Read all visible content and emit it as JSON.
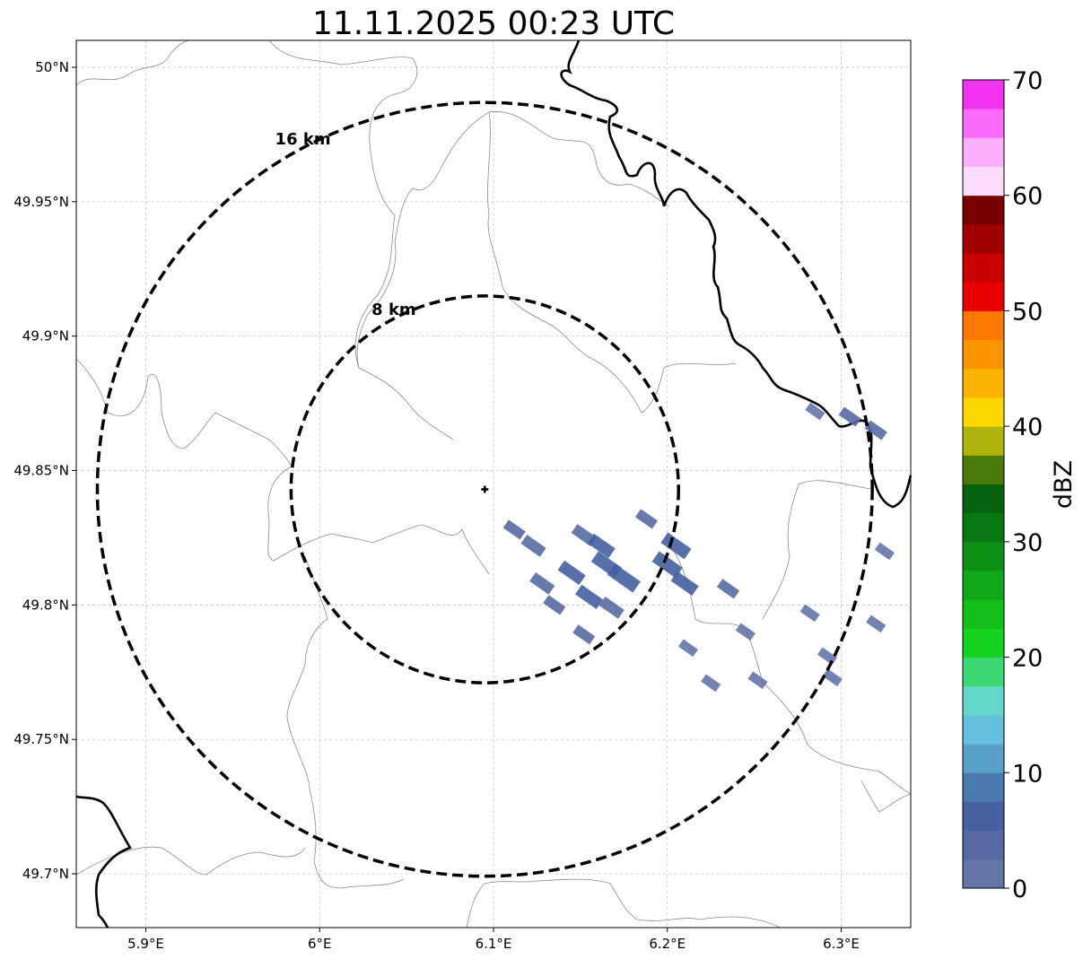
{
  "title": "11.11.2025 00:23 UTC",
  "map": {
    "lon_range": [
      5.86,
      6.34
    ],
    "lat_range": [
      49.68,
      50.01
    ],
    "lon_ticks": [
      {
        "value": 5.9,
        "label": "5.9°E"
      },
      {
        "value": 6.0,
        "label": "6°E"
      },
      {
        "value": 6.1,
        "label": "6.1°E"
      },
      {
        "value": 6.2,
        "label": "6.2°E"
      },
      {
        "value": 6.3,
        "label": "6.3°E"
      }
    ],
    "lat_ticks": [
      {
        "value": 50.0,
        "label": "50°N"
      },
      {
        "value": 49.95,
        "label": "49.95°N"
      },
      {
        "value": 49.9,
        "label": "49.9°N"
      },
      {
        "value": 49.85,
        "label": "49.85°N"
      },
      {
        "value": 49.8,
        "label": "49.8°N"
      },
      {
        "value": 49.75,
        "label": "49.75°N"
      },
      {
        "value": 49.7,
        "label": "49.7°N"
      }
    ],
    "radar_center": {
      "lon": 6.095,
      "lat": 49.843
    },
    "rings": [
      {
        "label": "8 km",
        "radius_km": 8
      },
      {
        "label": "16 km",
        "radius_km": 16
      }
    ],
    "echoes": [
      {
        "lon": 6.152,
        "lat": 49.826,
        "dbz": 4
      },
      {
        "lon": 6.162,
        "lat": 49.822,
        "dbz": 5
      },
      {
        "lon": 6.165,
        "lat": 49.815,
        "dbz": 6
      },
      {
        "lon": 6.145,
        "lat": 49.812,
        "dbz": 5
      },
      {
        "lon": 6.128,
        "lat": 49.808,
        "dbz": 4
      },
      {
        "lon": 6.135,
        "lat": 49.8,
        "dbz": 3
      },
      {
        "lon": 6.155,
        "lat": 49.803,
        "dbz": 5
      },
      {
        "lon": 6.168,
        "lat": 49.799,
        "dbz": 4
      },
      {
        "lon": 6.175,
        "lat": 49.81,
        "dbz": 7
      },
      {
        "lon": 6.2,
        "lat": 49.815,
        "dbz": 6
      },
      {
        "lon": 6.21,
        "lat": 49.808,
        "dbz": 5
      },
      {
        "lon": 6.205,
        "lat": 49.822,
        "dbz": 6
      },
      {
        "lon": 6.188,
        "lat": 49.832,
        "dbz": 3
      },
      {
        "lon": 6.235,
        "lat": 49.806,
        "dbz": 3
      },
      {
        "lon": 6.112,
        "lat": 49.828,
        "dbz": 3
      },
      {
        "lon": 6.123,
        "lat": 49.822,
        "dbz": 4
      },
      {
        "lon": 6.152,
        "lat": 49.789,
        "dbz": 3
      },
      {
        "lon": 6.285,
        "lat": 49.872,
        "dbz": 2
      },
      {
        "lon": 6.305,
        "lat": 49.87,
        "dbz": 3
      },
      {
        "lon": 6.32,
        "lat": 49.865,
        "dbz": 3
      },
      {
        "lon": 6.325,
        "lat": 49.82,
        "dbz": 2
      },
      {
        "lon": 6.252,
        "lat": 49.772,
        "dbz": 2
      },
      {
        "lon": 6.282,
        "lat": 49.797,
        "dbz": 2
      },
      {
        "lon": 6.292,
        "lat": 49.781,
        "dbz": 2
      },
      {
        "lon": 6.295,
        "lat": 49.773,
        "dbz": 2
      },
      {
        "lon": 6.245,
        "lat": 49.79,
        "dbz": 2
      },
      {
        "lon": 6.225,
        "lat": 49.771,
        "dbz": 2
      },
      {
        "lon": 6.212,
        "lat": 49.784,
        "dbz": 2
      },
      {
        "lon": 6.32,
        "lat": 49.793,
        "dbz": 2
      }
    ]
  },
  "colorbar": {
    "label": "dBZ",
    "min": 0,
    "max": 70,
    "step": 2.5,
    "ticks": [
      {
        "value": 0,
        "label": "0"
      },
      {
        "value": 10,
        "label": "10"
      },
      {
        "value": 20,
        "label": "20"
      },
      {
        "value": 30,
        "label": "30"
      },
      {
        "value": 40,
        "label": "40"
      },
      {
        "value": 50,
        "label": "50"
      },
      {
        "value": 60,
        "label": "60"
      },
      {
        "value": 70,
        "label": "70"
      }
    ],
    "colors": [
      "#6476a8",
      "#586aa2",
      "#4660a0",
      "#4c7ab0",
      "#58a0c8",
      "#64c0dc",
      "#64d8c8",
      "#3cd674",
      "#14d21e",
      "#12be1a",
      "#10a818",
      "#0e9016",
      "#0a7812",
      "#06620e",
      "#4a7a0a",
      "#aeb40c",
      "#fcd800",
      "#fcb400",
      "#fc9400",
      "#fc7800",
      "#e80000",
      "#c80000",
      "#a00000",
      "#780000",
      "#fcdcfc",
      "#fcb0fc",
      "#fc6cfc",
      "#f034f0"
    ]
  },
  "colors": {
    "echo": "#4a6aa8",
    "ring": "#000000",
    "border_major": "#000000",
    "border_minor": "#8a8a8a",
    "grid": "#bbbbbb"
  }
}
